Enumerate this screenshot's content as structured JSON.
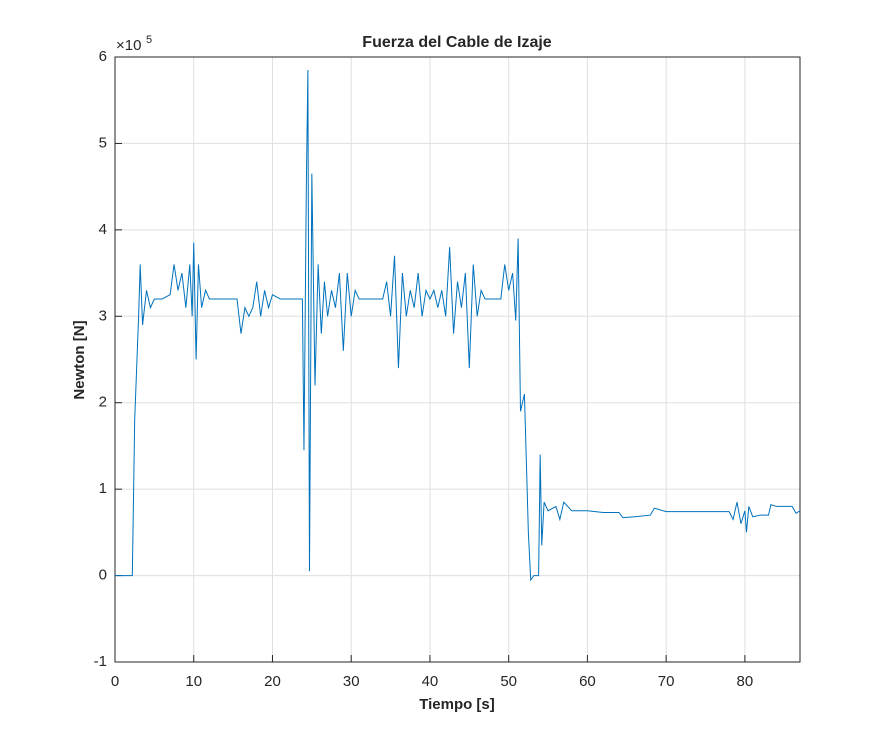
{
  "chart_data": {
    "type": "line",
    "title": "Fuerza del Cable de Izaje",
    "x_label": "Tiempo [s]",
    "y_label": "Newton [N]",
    "y_multiplier_base": "×10",
    "y_multiplier_exponent": "5",
    "xlim": [
      0,
      87
    ],
    "ylim": [
      -1,
      6
    ],
    "xticks": [
      0,
      10,
      20,
      30,
      40,
      50,
      60,
      70,
      80
    ],
    "yticks": [
      -1,
      0,
      1,
      2,
      3,
      4,
      5,
      6
    ],
    "grid": true,
    "series": [
      {
        "color": "#0072bd",
        "x": [
          0,
          2.2,
          2.5,
          3.0,
          3.2,
          3.5,
          4.0,
          4.5,
          5,
          6,
          7,
          7.5,
          8,
          8.5,
          9,
          9.5,
          9.8,
          10,
          10.3,
          10.6,
          11,
          11.5,
          12,
          13,
          14,
          15,
          15.5,
          16,
          16.5,
          17,
          17.5,
          18,
          18.5,
          19,
          19.5,
          20,
          21,
          22,
          23,
          23.8,
          24.0,
          24.3,
          24.5,
          24.7,
          25.0,
          25.4,
          25.8,
          26.2,
          26.6,
          27,
          27.5,
          28,
          28.5,
          29,
          29.5,
          30,
          30.5,
          31,
          32,
          33,
          34,
          34.5,
          35,
          35.5,
          36,
          36.5,
          37,
          37.5,
          38,
          38.5,
          39,
          39.5,
          40,
          40.5,
          41,
          41.5,
          42,
          42.5,
          43,
          43.5,
          44,
          44.5,
          45,
          45.5,
          46,
          46.5,
          47,
          48,
          49,
          49.5,
          50,
          50.5,
          50.9,
          51.2,
          51.5,
          52,
          52.5,
          52.8,
          53.2,
          53.8,
          54,
          54.2,
          54.5,
          55,
          56,
          56.5,
          57,
          58,
          59,
          60,
          62,
          64,
          64.5,
          66,
          68,
          68.5,
          70,
          72,
          75,
          78,
          78.5,
          79,
          79.5,
          80,
          80.2,
          80.5,
          81,
          82,
          83,
          83.3,
          84,
          86,
          86.5,
          87
        ],
        "values": [
          0,
          0,
          1.8,
          3.0,
          3.6,
          2.9,
          3.3,
          3.1,
          3.2,
          3.2,
          3.25,
          3.6,
          3.3,
          3.5,
          3.1,
          3.6,
          3.0,
          3.85,
          2.5,
          3.6,
          3.1,
          3.3,
          3.2,
          3.2,
          3.2,
          3.2,
          3.2,
          2.8,
          3.1,
          3.0,
          3.1,
          3.4,
          3.0,
          3.3,
          3.1,
          3.25,
          3.2,
          3.2,
          3.2,
          3.2,
          1.45,
          4.5,
          5.85,
          0.05,
          4.65,
          2.2,
          3.6,
          2.8,
          3.4,
          3.0,
          3.3,
          3.1,
          3.5,
          2.6,
          3.5,
          3.0,
          3.3,
          3.2,
          3.2,
          3.2,
          3.2,
          3.4,
          3.0,
          3.7,
          2.4,
          3.5,
          3.0,
          3.3,
          3.1,
          3.5,
          3.0,
          3.3,
          3.2,
          3.3,
          3.1,
          3.3,
          3.0,
          3.8,
          2.8,
          3.4,
          3.1,
          3.5,
          2.4,
          3.6,
          3.0,
          3.3,
          3.2,
          3.2,
          3.2,
          3.6,
          3.3,
          3.5,
          2.95,
          3.9,
          1.9,
          2.1,
          0.5,
          -0.05,
          0,
          0,
          1.4,
          0.35,
          0.85,
          0.75,
          0.8,
          0.65,
          0.85,
          0.75,
          0.75,
          0.75,
          0.73,
          0.73,
          0.67,
          0.68,
          0.7,
          0.78,
          0.74,
          0.74,
          0.74,
          0.74,
          0.65,
          0.85,
          0.6,
          0.75,
          0.5,
          0.8,
          0.68,
          0.7,
          0.7,
          0.82,
          0.8,
          0.8,
          0.72,
          0.75
        ]
      }
    ]
  }
}
